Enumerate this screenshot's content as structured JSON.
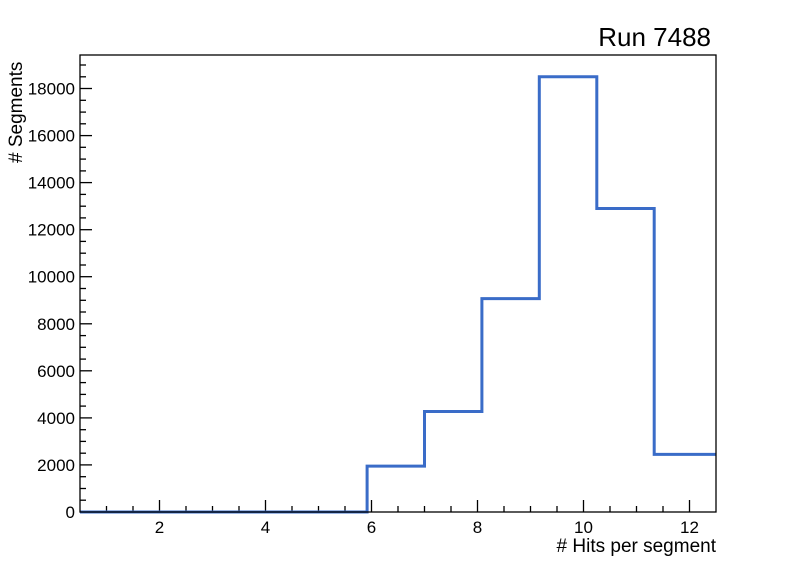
{
  "chart_data": {
    "type": "histogram-step",
    "title": "Run 7488",
    "xlabel": "# Hits per segment",
    "ylabel": "# Segments",
    "xlim": [
      0.5,
      12.5
    ],
    "ylim": [
      0,
      19425
    ],
    "x_major_ticks": [
      2,
      4,
      6,
      8,
      10,
      12
    ],
    "x_minor_step": 0.5,
    "y_major_ticks": [
      0,
      2000,
      4000,
      6000,
      8000,
      10000,
      12000,
      14000,
      16000,
      18000
    ],
    "y_minor_step": 500,
    "grid": false,
    "legend": null,
    "line_color": "#3a6cc8",
    "frame_color": "#000000",
    "background_color": "#ffffff",
    "bins": [
      {
        "x_from": 0.5,
        "x_to": 5.9167,
        "count": 0
      },
      {
        "x_from": 5.9167,
        "x_to": 7.0,
        "count": 1950
      },
      {
        "x_from": 7.0,
        "x_to": 8.0833,
        "count": 4270
      },
      {
        "x_from": 8.0833,
        "x_to": 9.1667,
        "count": 9070
      },
      {
        "x_from": 9.1667,
        "x_to": 10.25,
        "count": 18500
      },
      {
        "x_from": 10.25,
        "x_to": 11.3333,
        "count": 12900
      },
      {
        "x_from": 11.3333,
        "x_to": 12.5,
        "count": 2450
      }
    ]
  }
}
